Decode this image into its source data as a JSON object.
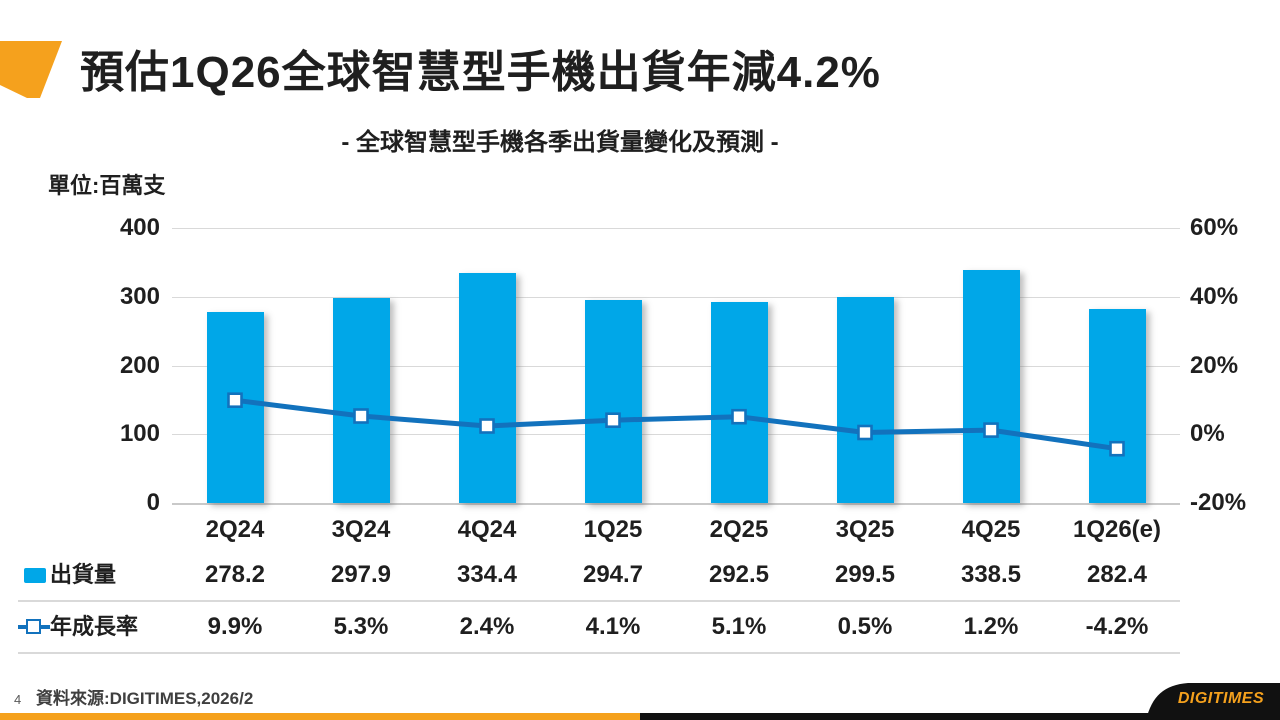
{
  "slide": {
    "title": "預估1Q26全球智慧型手機出貨年減4.2%",
    "footer": {
      "page_number": "4",
      "source": "資料來源:DIGITIMES,2026/2"
    },
    "brand": "DIGITIMES"
  },
  "colors": {
    "accent_orange": "#F5A11D",
    "bar_fill": "#00A7E8",
    "line_stroke": "#1272BD",
    "gridline": "#D9D9D9",
    "text": "#1F1F1F",
    "footer_text": "#3F3F3F",
    "footer_black": "#111111"
  },
  "chart_data": {
    "type": "combo-bar-line",
    "title": "- 全球智慧型手機各季出貨量變化及預測 -",
    "unit": "單位:百萬支",
    "categories": [
      "2Q24",
      "3Q24",
      "4Q24",
      "1Q25",
      "2Q25",
      "3Q25",
      "4Q25",
      "1Q26(e)"
    ],
    "series": [
      {
        "name": "出貨量",
        "type": "bar",
        "axis": "left",
        "values": [
          278.2,
          297.9,
          334.4,
          294.7,
          292.5,
          299.5,
          338.5,
          282.4
        ],
        "display": [
          "278.2",
          "297.9",
          "334.4",
          "294.7",
          "292.5",
          "299.5",
          "338.5",
          "282.4"
        ]
      },
      {
        "name": "年成長率",
        "type": "line",
        "axis": "right",
        "values": [
          9.9,
          5.3,
          2.4,
          4.1,
          5.1,
          0.5,
          1.2,
          -4.2
        ],
        "display": [
          "9.9%",
          "5.3%",
          "2.4%",
          "4.1%",
          "5.1%",
          "0.5%",
          "1.2%",
          "-4.2%"
        ]
      }
    ],
    "left_axis": {
      "range": [
        0,
        400
      ],
      "ticks": [
        "400",
        "300",
        "200",
        "100",
        "0"
      ]
    },
    "right_axis": {
      "range": [
        -20,
        60
      ],
      "ticks": [
        "60%",
        "40%",
        "20%",
        "0%",
        "-20%"
      ]
    },
    "grid": true,
    "legend_position": "data-table-left"
  }
}
